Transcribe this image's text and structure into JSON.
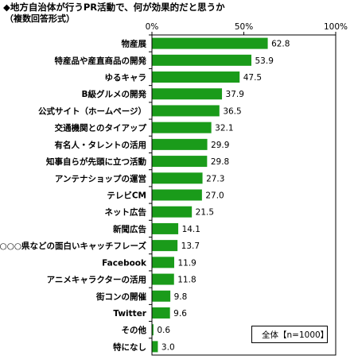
{
  "chart_data": {
    "type": "bar",
    "orientation": "horizontal",
    "title": "◆地方自治体が行うPR活動で、何が効果的だと思うか",
    "subtitle": "（複数回答形式）",
    "categories": [
      "物産展",
      "特産品や産直商品の開発",
      "ゆるキャラ",
      "B級グルメの開発",
      "公式サイト（ホームページ）",
      "交通機関とのタイアップ",
      "有名人・タレントの活用",
      "知事自らが先頭に立つ活動",
      "アンテナショップの運営",
      "テレビCM",
      "ネット広告",
      "新聞広告",
      "○○○県などの面白いキャッチフレーズ",
      "Facebook",
      "アニメキャラクターの活用",
      "街コンの開催",
      "Twitter",
      "その他",
      "特になし"
    ],
    "series": [
      {
        "name": "全体【n=1000】",
        "values": [
          62.8,
          53.9,
          47.5,
          37.9,
          36.5,
          32.1,
          29.9,
          29.8,
          27.3,
          27.0,
          21.5,
          14.1,
          13.7,
          11.9,
          11.8,
          9.8,
          9.6,
          0.6,
          3.0
        ]
      }
    ],
    "value_labels": [
      "62.8",
      "53.9",
      "47.5",
      "37.9",
      "36.5",
      "32.1",
      "29.9",
      "29.8",
      "27.3",
      "27.0",
      "21.5",
      "14.1",
      "13.7",
      "11.9",
      "11.8",
      "9.8",
      "9.6",
      "0.6",
      "3.0"
    ],
    "xlim": [
      0,
      100
    ],
    "x_ticks": [
      "0%",
      "50%",
      "100%"
    ],
    "x_tick_values": [
      0,
      50,
      100
    ],
    "grid": false,
    "legend_position": "bottom-right",
    "bar_color": "#1a9b1a"
  }
}
